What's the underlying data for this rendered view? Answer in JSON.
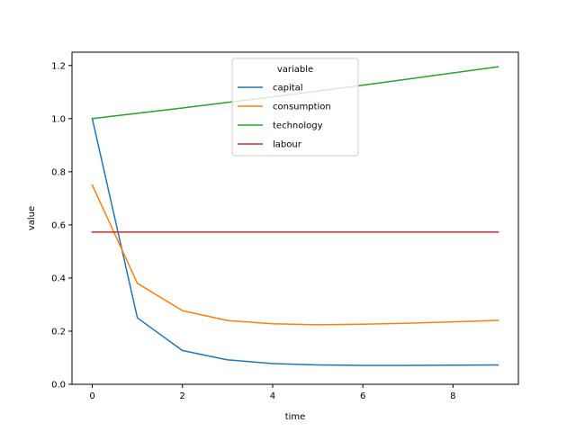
{
  "chart_data": {
    "type": "line",
    "xlabel": "time",
    "ylabel": "value",
    "xlim": [
      -0.45,
      9.45
    ],
    "ylim": [
      0.0,
      1.25
    ],
    "xticks": [
      0,
      2,
      4,
      6,
      8
    ],
    "yticks": [
      0.0,
      0.2,
      0.4,
      0.6,
      0.8,
      1.0,
      1.2
    ],
    "grid": false,
    "legend": {
      "title": "variable",
      "placement": "upper-center"
    },
    "x": [
      0,
      1,
      2,
      3,
      4,
      5,
      6,
      7,
      8,
      9
    ],
    "series": [
      {
        "name": "capital",
        "color": "#1f77b4",
        "values": [
          1.0,
          0.25,
          0.127,
          0.092,
          0.078,
          0.073,
          0.071,
          0.071,
          0.072,
          0.073
        ]
      },
      {
        "name": "consumption",
        "color": "#ff7f0e",
        "values": [
          0.75,
          0.38,
          0.277,
          0.24,
          0.228,
          0.224,
          0.226,
          0.23,
          0.235,
          0.241
        ]
      },
      {
        "name": "technology",
        "color": "#2ca02c",
        "values": [
          1.0,
          1.02,
          1.04,
          1.061,
          1.082,
          1.104,
          1.126,
          1.149,
          1.172,
          1.195
        ]
      },
      {
        "name": "labour",
        "color": "#d62728",
        "values": [
          0.573,
          0.573,
          0.573,
          0.573,
          0.573,
          0.573,
          0.573,
          0.573,
          0.573,
          0.573
        ]
      }
    ]
  }
}
